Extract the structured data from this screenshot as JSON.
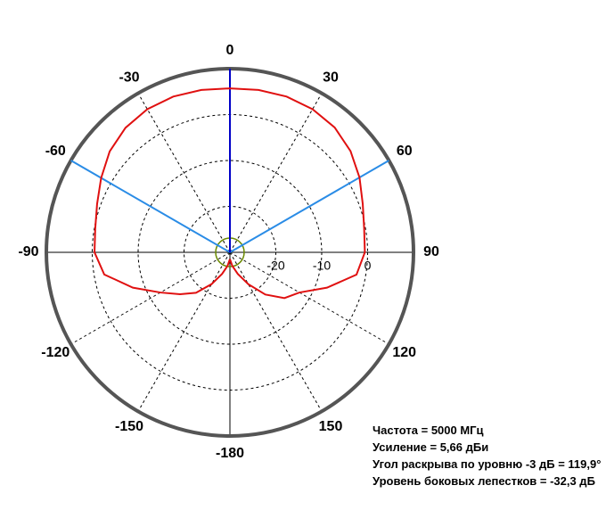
{
  "chart_data": {
    "type": "polar",
    "rlim": [
      -30,
      10
    ],
    "rticks": [
      -20,
      -10,
      0
    ],
    "angle_ticks": [
      0,
      30,
      60,
      90,
      120,
      150,
      -180,
      -150,
      -120,
      -90,
      -60,
      -30
    ],
    "grid": true,
    "main_direction": 0,
    "main_direction_color": "#0000c8",
    "beam_edges": [
      -60,
      60
    ],
    "beam_color": "#2a8ce6",
    "series": [
      {
        "color": "#e01010",
        "x": [
          -180,
          -170,
          -160,
          -150,
          -140,
          -130,
          -120,
          -110,
          -100,
          -90,
          -80,
          -70,
          -60,
          -50,
          -40,
          -30,
          -20,
          -10,
          0,
          10,
          20,
          30,
          40,
          50,
          60,
          70,
          80,
          90,
          100,
          110,
          120,
          130,
          140,
          150,
          160,
          170,
          180
        ],
        "values": [
          -28.5,
          -27,
          -25,
          -22,
          -18.5,
          -15.8,
          -12.5,
          -7.5,
          -2.2,
          -0.5,
          -0.2,
          0.8,
          2.4,
          4.2,
          5.4,
          6,
          6.1,
          5.9,
          5.7,
          5.9,
          6.1,
          6,
          5.5,
          4.3,
          2.6,
          0.8,
          -0.3,
          -0.6,
          -2,
          -7.5,
          -12.5,
          -14.5,
          -18,
          -22,
          -25,
          -27,
          -28.5
        ]
      }
    ],
    "annotations": [
      "Частота = 5000 МГц",
      "Усиление = 5,66 дБи",
      "Угол раскрыва по уровню -3 дБ = 119,9°",
      "Уровень боковых лепестков = -32,3 дБ"
    ]
  }
}
